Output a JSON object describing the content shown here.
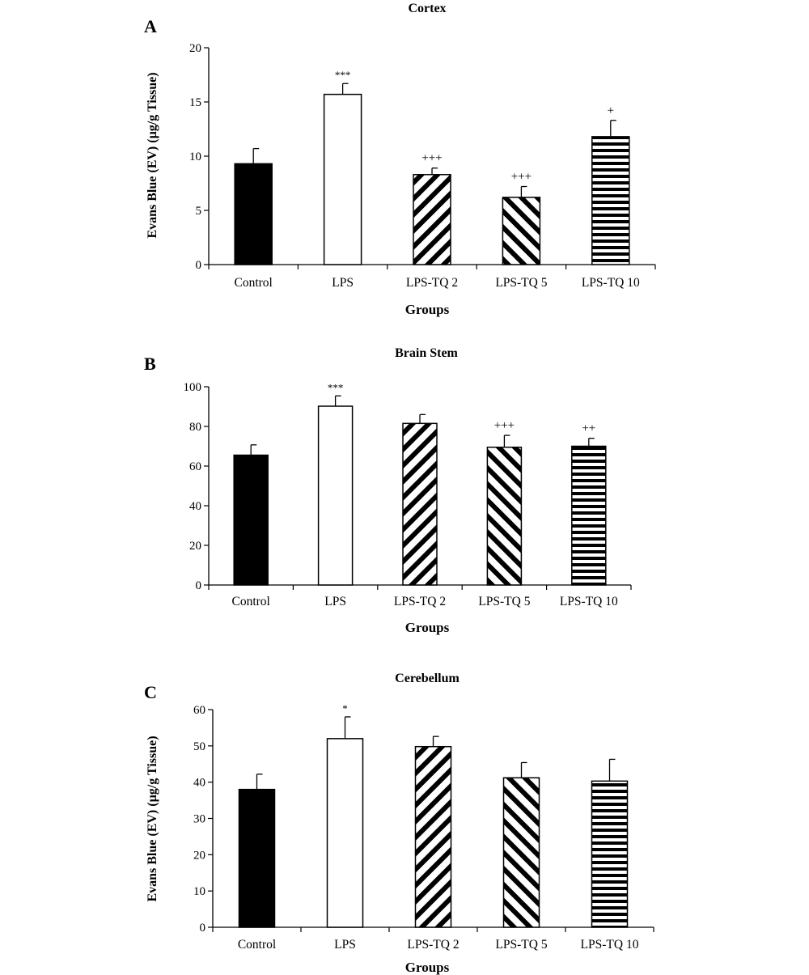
{
  "chart_data": [
    {
      "type": "bar",
      "panel_label": "A",
      "title": "Cortex",
      "xlabel": "Groups",
      "ylabel": "Evans Blue (EV) (µg/g Tissue)",
      "ylim": [
        0,
        20
      ],
      "yticks": [
        "0",
        "5",
        "10",
        "15",
        "20"
      ],
      "categories": [
        "Control",
        "LPS",
        "LPS-TQ 2",
        "LPS-TQ 5",
        "LPS-TQ 10"
      ],
      "values": [
        9.3,
        15.7,
        8.3,
        6.2,
        11.8
      ],
      "errors": [
        1.4,
        1.0,
        0.6,
        1.0,
        1.5
      ],
      "annotations": [
        "",
        "***",
        "+++",
        "+++",
        "+"
      ],
      "grid": false
    },
    {
      "type": "bar",
      "panel_label": "B",
      "title": "Brain Stem",
      "xlabel": "Groups",
      "ylabel": "",
      "ylim": [
        0,
        100
      ],
      "yticks": [
        "0",
        "20",
        "40",
        "60",
        "80",
        "100"
      ],
      "categories": [
        "Control",
        "LPS",
        "LPS-TQ 2",
        "LPS-TQ 5",
        "LPS-TQ 10"
      ],
      "values": [
        65.5,
        90.2,
        81.5,
        69.5,
        70.0
      ],
      "errors": [
        5.2,
        5.2,
        4.5,
        6.0,
        4.0
      ],
      "annotations": [
        "",
        "***",
        "",
        "+++",
        "++"
      ],
      "grid": false
    },
    {
      "type": "bar",
      "panel_label": "C",
      "title": "Cerebellum",
      "xlabel": "Groups",
      "ylabel": "Evans Blue (EV) (µg/g Tissue)",
      "ylim": [
        0,
        60
      ],
      "yticks": [
        "0",
        "10",
        "20",
        "30",
        "40",
        "50",
        "60"
      ],
      "categories": [
        "Control",
        "LPS",
        "LPS-TQ 2",
        "LPS-TQ 5",
        "LPS-TQ 10"
      ],
      "values": [
        38.0,
        52.0,
        49.8,
        41.2,
        40.3
      ],
      "errors": [
        4.2,
        6.0,
        2.8,
        4.2,
        6.0
      ],
      "annotations": [
        "",
        "*",
        "",
        "",
        ""
      ],
      "grid": false
    }
  ],
  "bar_styles": [
    {
      "fill": "solid",
      "color": "#000000"
    },
    {
      "fill": "open",
      "color": "#ffffff"
    },
    {
      "fill": "diagonal-up",
      "color": "#000000"
    },
    {
      "fill": "diagonal-down",
      "color": "#000000"
    },
    {
      "fill": "horizontal-stripes",
      "color": "#000000"
    }
  ]
}
